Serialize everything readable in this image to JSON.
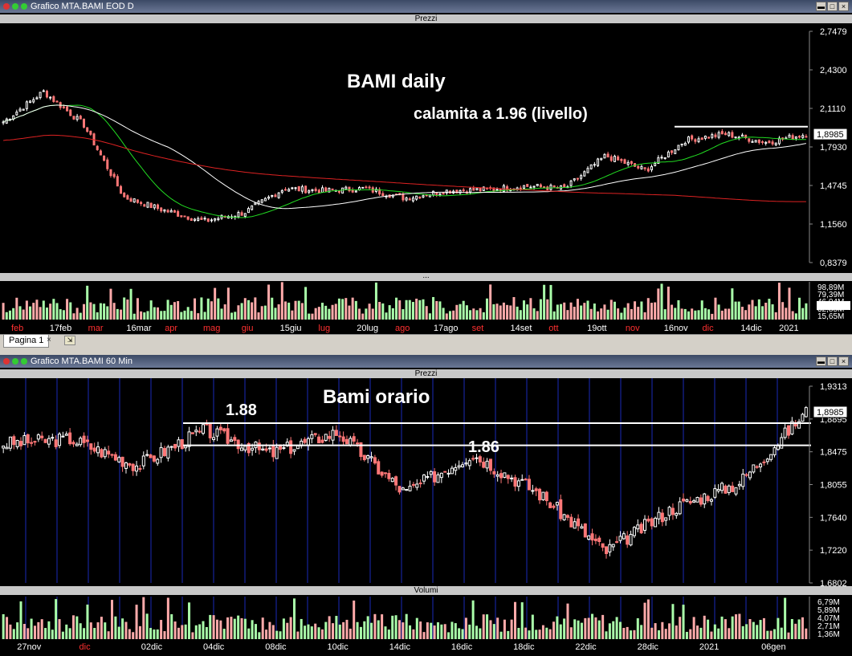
{
  "colors": {
    "bg": "#000000",
    "up": "#ffffff",
    "down": "#ff7777",
    "ma_green": "#22dd22",
    "ma_white": "#ffffff",
    "ma_red": "#dd2222",
    "vol_up": "#aaffaa",
    "vol_down": "#ffaaaa",
    "level": "#ffffff",
    "grid_v": "#1a2ab8"
  },
  "daily": {
    "title": "Grafico MTA.BAMI EOD D",
    "panel_label": "Prezzi",
    "vol_label": "...",
    "annotation_main": "BAMI daily",
    "annotation_sub": "calamita a 1.96 (livello)",
    "y_ticks": [
      "2,7479",
      "2,4300",
      "2,1110",
      "1,7930",
      "1,4745",
      "1,1560",
      "0,8379"
    ],
    "last_price": "1,8985",
    "vol_ticks": [
      "98,89M",
      "79,39M",
      "46,04M",
      "32,85M",
      "15,65M"
    ],
    "x_labels": [
      {
        "t": "feb",
        "red": true
      },
      {
        "t": "17feb",
        "red": false
      },
      {
        "t": "mar",
        "red": true
      },
      {
        "t": "16mar",
        "red": false
      },
      {
        "t": "apr",
        "red": true
      },
      {
        "t": "mag",
        "red": true
      },
      {
        "t": "giu",
        "red": true
      },
      {
        "t": "15giu",
        "red": false
      },
      {
        "t": "lug",
        "red": true
      },
      {
        "t": "20lug",
        "red": false
      },
      {
        "t": "ago",
        "red": true
      },
      {
        "t": "17ago",
        "red": false
      },
      {
        "t": "set",
        "red": true
      },
      {
        "t": "14set",
        "red": false
      },
      {
        "t": "ott",
        "red": true
      },
      {
        "t": "19ott",
        "red": false
      },
      {
        "t": "nov",
        "red": true
      },
      {
        "t": "16nov",
        "red": false
      },
      {
        "t": "dic",
        "red": true
      },
      {
        "t": "14dic",
        "red": false
      },
      {
        "t": "2021",
        "red": false
      }
    ]
  },
  "tabbar": {
    "tab_label": "Pagina 1",
    "close": "×"
  },
  "hourly": {
    "title": "Grafico MTA.BAMI 60 Min",
    "panel_label": "Prezzi",
    "vol_label": "Volumi",
    "annotation_main": "Bami orario",
    "level_1_label": "1.88",
    "level_2_label": "1.86",
    "y_ticks": [
      "1,9313",
      "1,8895",
      "1,8475",
      "1,8055",
      "1,7640",
      "1,7220",
      "1,6802"
    ],
    "last_price": "1,8985",
    "vol_ticks": [
      "6,79M",
      "5,89M",
      "4,07M",
      "2,71M",
      "1,36M"
    ],
    "x_labels": [
      {
        "t": "27nov",
        "red": false
      },
      {
        "t": "dic",
        "red": true
      },
      {
        "t": "02dic",
        "red": false
      },
      {
        "t": "04dic",
        "red": false
      },
      {
        "t": "08dic",
        "red": false
      },
      {
        "t": "10dic",
        "red": false
      },
      {
        "t": "14dic",
        "red": false
      },
      {
        "t": "16dic",
        "red": false
      },
      {
        "t": "18dic",
        "red": false
      },
      {
        "t": "22dic",
        "red": false
      },
      {
        "t": "28dic",
        "red": false
      },
      {
        "t": "2021",
        "red": false
      },
      {
        "t": "06gen",
        "red": false
      }
    ]
  },
  "chart_data": [
    {
      "type": "candlestick",
      "title": "BAMI daily",
      "ylim": [
        0.8379,
        2.7479
      ],
      "levels": [
        1.96
      ],
      "x": [
        "feb",
        "17feb",
        "mar",
        "16mar",
        "apr",
        "mag",
        "giu",
        "15giu",
        "lug",
        "20lug",
        "ago",
        "17ago",
        "set",
        "14set",
        "ott",
        "19ott",
        "nov",
        "16nov",
        "dic",
        "14dic",
        "2021"
      ],
      "series": [
        {
          "values": [
            2.0,
            2.25,
            1.98,
            1.38,
            1.27,
            1.18,
            1.25,
            1.45,
            1.43,
            1.45,
            1.37,
            1.43,
            1.44,
            1.47,
            1.45,
            1.72,
            1.6,
            1.85,
            1.9,
            1.83,
            1.8985
          ]
        }
      ]
    },
    {
      "type": "candlestick",
      "title": "Bami orario",
      "ylim": [
        1.6802,
        1.9313
      ],
      "levels": [
        1.88,
        1.86
      ],
      "x": [
        "27nov",
        "dic",
        "02dic",
        "04dic",
        "08dic",
        "10dic",
        "14dic",
        "16dic",
        "18dic",
        "22dic",
        "28dic",
        "2021",
        "06gen"
      ],
      "series": [
        {
          "values": [
            1.858,
            1.864,
            1.83,
            1.875,
            1.845,
            1.873,
            1.795,
            1.845,
            1.795,
            1.72,
            1.775,
            1.808,
            1.8985
          ]
        }
      ]
    }
  ]
}
